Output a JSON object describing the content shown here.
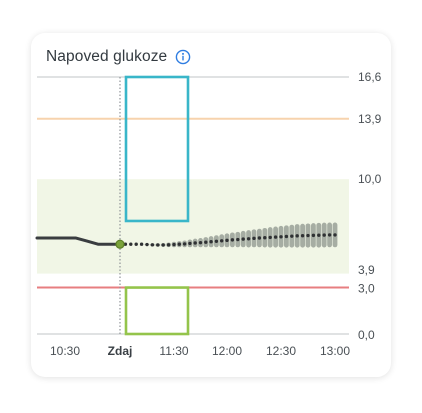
{
  "widget": {
    "title": "Napoved glukoze",
    "info_icon": "info-circle-icon"
  },
  "colors": {
    "card_bg": "#ffffff",
    "target_range": "#f1f6e6",
    "high_line": "#f7d3ad",
    "low_line": "#e77e80",
    "grid_line": "#d5d8da",
    "now_line": "#8f9498",
    "history_line": "#3a3d40",
    "forecast_dots": "#2f3133",
    "forecast_band": "#a6ada3",
    "highlight_top": "#39b6c9",
    "highlight_bottom": "#94c44b",
    "info_icon": "#2f7de1"
  },
  "chart_data": {
    "type": "line",
    "title": "Napoved glukoze",
    "y_axis_ticks": [
      "16,6",
      "13,9",
      "10,0",
      "3,9",
      "3,0",
      "0,0"
    ],
    "x_axis_ticks": [
      "10:30",
      "Zdaj",
      "11:30",
      "12:00",
      "12:30",
      "13:00"
    ],
    "ylim": [
      0,
      16.6
    ],
    "target_range": [
      3.9,
      10.0
    ],
    "high_threshold": 13.9,
    "low_threshold": 3.0,
    "now_time_min": 660,
    "history": {
      "x": [
        630,
        636,
        642,
        648,
        654,
        660
      ],
      "y": [
        6.2,
        6.2,
        6.0,
        5.8,
        5.8,
        5.8
      ]
    },
    "forecast": {
      "x": [
        660,
        663,
        666,
        669,
        672,
        675,
        678,
        681,
        684,
        687,
        690,
        693,
        696,
        699,
        702,
        705,
        708,
        711,
        714,
        717,
        720,
        723,
        726,
        729,
        732,
        735,
        738,
        741,
        744,
        747,
        750,
        753,
        756,
        759,
        762,
        765,
        768,
        771,
        774,
        777,
        780
      ],
      "y": [
        5.8,
        5.8,
        5.8,
        5.8,
        5.8,
        5.78,
        5.76,
        5.75,
        5.75,
        5.76,
        5.78,
        5.8,
        5.82,
        5.85,
        5.88,
        5.9,
        5.93,
        5.96,
        5.99,
        6.02,
        6.05,
        6.08,
        6.1,
        6.13,
        6.15,
        6.18,
        6.2,
        6.22,
        6.24,
        6.26,
        6.28,
        6.3,
        6.32,
        6.34,
        6.35,
        6.36,
        6.37,
        6.38,
        6.39,
        6.4,
        6.4
      ],
      "band": [
        0,
        0,
        0,
        0,
        0,
        0.05,
        0.08,
        0.1,
        0.12,
        0.15,
        0.18,
        0.2,
        0.22,
        0.25,
        0.28,
        0.3,
        0.33,
        0.36,
        0.39,
        0.42,
        0.45,
        0.48,
        0.5,
        0.53,
        0.56,
        0.58,
        0.6,
        0.63,
        0.66,
        0.68,
        0.7,
        0.72,
        0.74,
        0.76,
        0.77,
        0.78,
        0.79,
        0.8,
        0.8,
        0.8,
        0.8
      ]
    },
    "highlight_window": {
      "x_start": 660,
      "x_end": 690,
      "upper_range": [
        7.3,
        16.6
      ],
      "lower_range": [
        0.0,
        3.0
      ]
    }
  }
}
